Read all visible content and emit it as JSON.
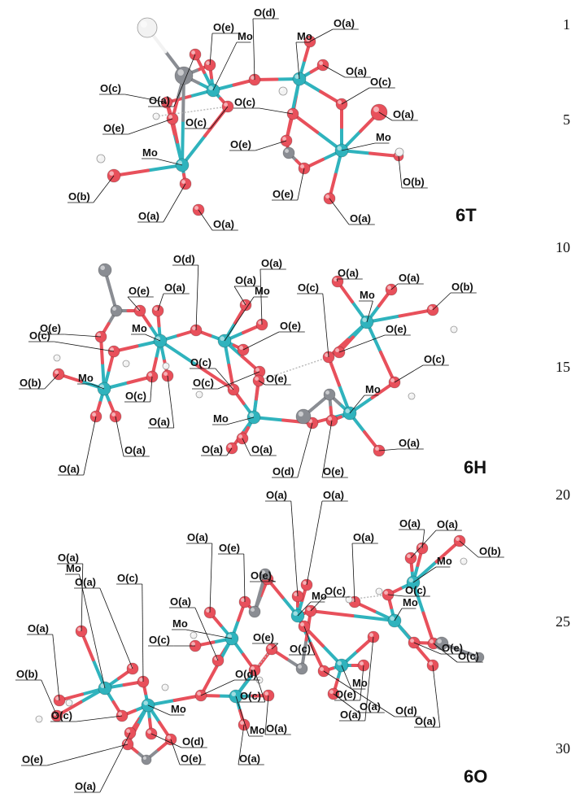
{
  "line_numbers": [
    "1",
    "5",
    "10",
    "15",
    "20",
    "25",
    "30"
  ],
  "structures": [
    {
      "title": "6T",
      "atoms": [
        {
          "el": "Mo",
          "label": "Mo"
        },
        {
          "el": "Mo",
          "label": "Mo"
        },
        {
          "el": "Mo",
          "label": "Mo"
        },
        {
          "el": "Mo",
          "label": "Mo"
        },
        {
          "el": "O",
          "label": "O(a)"
        },
        {
          "el": "O",
          "label": "O(a)"
        },
        {
          "el": "O",
          "label": "O(a)"
        },
        {
          "el": "O",
          "label": "O(a)"
        },
        {
          "el": "O",
          "label": "O(a)"
        },
        {
          "el": "O",
          "label": "O(a)"
        },
        {
          "el": "O",
          "label": "O(a)"
        },
        {
          "el": "O",
          "label": "O(b)"
        },
        {
          "el": "O",
          "label": "O(b)"
        },
        {
          "el": "O",
          "label": "O(c)"
        },
        {
          "el": "O",
          "label": "O(c)"
        },
        {
          "el": "O",
          "label": "O(c)"
        },
        {
          "el": "O",
          "label": "O(c)"
        },
        {
          "el": "O",
          "label": "O(d)"
        },
        {
          "el": "O",
          "label": "O(e)"
        },
        {
          "el": "O",
          "label": "O(e)"
        },
        {
          "el": "O",
          "label": "O(e)"
        },
        {
          "el": "O",
          "label": "O(e)"
        },
        {
          "el": "C",
          "label": ""
        },
        {
          "el": "C",
          "label": ""
        },
        {
          "el": "H",
          "label": ""
        },
        {
          "el": "H",
          "label": ""
        },
        {
          "el": "H",
          "label": ""
        },
        {
          "el": "H",
          "label": ""
        },
        {
          "el": "H",
          "label": ""
        }
      ]
    },
    {
      "title": "6H",
      "atoms": [
        {
          "el": "Mo",
          "label": "Mo"
        },
        {
          "el": "Mo",
          "label": "Mo"
        },
        {
          "el": "Mo",
          "label": "Mo"
        },
        {
          "el": "Mo",
          "label": "Mo"
        },
        {
          "el": "Mo",
          "label": "Mo"
        },
        {
          "el": "Mo",
          "label": "Mo"
        },
        {
          "el": "O",
          "label": "O(a)"
        },
        {
          "el": "O",
          "label": "O(a)"
        },
        {
          "el": "O",
          "label": "O(a)"
        },
        {
          "el": "O",
          "label": "O(a)"
        },
        {
          "el": "O",
          "label": "O(a)"
        },
        {
          "el": "O",
          "label": "O(a)"
        },
        {
          "el": "O",
          "label": "O(a)"
        },
        {
          "el": "O",
          "label": "O(a)"
        },
        {
          "el": "O",
          "label": "O(a)"
        },
        {
          "el": "O",
          "label": "O(a)"
        },
        {
          "el": "O",
          "label": "O(a)"
        },
        {
          "el": "O",
          "label": "O(b)"
        },
        {
          "el": "O",
          "label": "O(b)"
        },
        {
          "el": "O",
          "label": "O(c)"
        },
        {
          "el": "O",
          "label": "O(c)"
        },
        {
          "el": "O",
          "label": "O(c)"
        },
        {
          "el": "O",
          "label": "O(c)"
        },
        {
          "el": "O",
          "label": "O(c)"
        },
        {
          "el": "O",
          "label": "O(c)"
        },
        {
          "el": "O",
          "label": "O(d)"
        },
        {
          "el": "O",
          "label": "O(d)"
        },
        {
          "el": "O",
          "label": "O(e)"
        },
        {
          "el": "O",
          "label": "O(e)"
        },
        {
          "el": "O",
          "label": "O(e)"
        },
        {
          "el": "O",
          "label": "O(e)"
        },
        {
          "el": "O",
          "label": "O(e)"
        },
        {
          "el": "O",
          "label": "O(e)"
        },
        {
          "el": "C",
          "label": ""
        },
        {
          "el": "C",
          "label": ""
        },
        {
          "el": "C",
          "label": ""
        },
        {
          "el": "C",
          "label": ""
        },
        {
          "el": "H",
          "label": ""
        },
        {
          "el": "H",
          "label": ""
        },
        {
          "el": "H",
          "label": ""
        },
        {
          "el": "H",
          "label": ""
        },
        {
          "el": "H",
          "label": ""
        },
        {
          "el": "H",
          "label": ""
        }
      ]
    },
    {
      "title": "6O",
      "atoms": [
        {
          "el": "Mo",
          "label": "Mo"
        },
        {
          "el": "Mo",
          "label": "Mo"
        },
        {
          "el": "Mo",
          "label": "Mo"
        },
        {
          "el": "Mo",
          "label": "Mo"
        },
        {
          "el": "Mo",
          "label": "Mo"
        },
        {
          "el": "Mo",
          "label": "Mo"
        },
        {
          "el": "Mo",
          "label": "Mo"
        },
        {
          "el": "Mo",
          "label": "Mo"
        },
        {
          "el": "O",
          "label": "O(a)"
        },
        {
          "el": "O",
          "label": "O(a)"
        },
        {
          "el": "O",
          "label": "O(a)"
        },
        {
          "el": "O",
          "label": "O(a)"
        },
        {
          "el": "O",
          "label": "O(a)"
        },
        {
          "el": "O",
          "label": "O(a)"
        },
        {
          "el": "O",
          "label": "O(a)"
        },
        {
          "el": "O",
          "label": "O(a)"
        },
        {
          "el": "O",
          "label": "O(a)"
        },
        {
          "el": "O",
          "label": "O(a)"
        },
        {
          "el": "O",
          "label": "O(a)"
        },
        {
          "el": "O",
          "label": "O(a)"
        },
        {
          "el": "O",
          "label": "O(a)"
        },
        {
          "el": "O",
          "label": "O(a)"
        },
        {
          "el": "O",
          "label": "O(a)"
        },
        {
          "el": "O",
          "label": "O(a)"
        },
        {
          "el": "O",
          "label": "O(b)"
        },
        {
          "el": "O",
          "label": "O(b)"
        },
        {
          "el": "O",
          "label": "O(c)"
        },
        {
          "el": "O",
          "label": "O(c)"
        },
        {
          "el": "O",
          "label": "O(c)"
        },
        {
          "el": "O",
          "label": "O(c)"
        },
        {
          "el": "O",
          "label": "O(c)"
        },
        {
          "el": "O",
          "label": "O(c)"
        },
        {
          "el": "O",
          "label": "O(c)"
        },
        {
          "el": "O",
          "label": "O(c)"
        },
        {
          "el": "O",
          "label": "O(d)"
        },
        {
          "el": "O",
          "label": "O(d)"
        },
        {
          "el": "O",
          "label": "O(d)"
        },
        {
          "el": "O",
          "label": "O(e)"
        },
        {
          "el": "O",
          "label": "O(e)"
        },
        {
          "el": "O",
          "label": "O(e)"
        },
        {
          "el": "O",
          "label": "O(e)"
        },
        {
          "el": "O",
          "label": "O(e)"
        },
        {
          "el": "O",
          "label": "O(e)"
        },
        {
          "el": "O",
          "label": "O(e)"
        },
        {
          "el": "C",
          "label": ""
        },
        {
          "el": "C",
          "label": ""
        },
        {
          "el": "C",
          "label": ""
        },
        {
          "el": "C",
          "label": ""
        },
        {
          "el": "C",
          "label": ""
        },
        {
          "el": "C",
          "label": ""
        },
        {
          "el": "H",
          "label": ""
        },
        {
          "el": "H",
          "label": ""
        },
        {
          "el": "H",
          "label": ""
        },
        {
          "el": "H",
          "label": ""
        },
        {
          "el": "H",
          "label": ""
        },
        {
          "el": "H",
          "label": ""
        },
        {
          "el": "H",
          "label": ""
        },
        {
          "el": "H",
          "label": ""
        }
      ]
    }
  ],
  "colors": {
    "Mo": "#2fb3bd",
    "O": "#e8505b",
    "C": "#8a8d93",
    "H": "#f2f2f2",
    "bond_Mo_O_a": "#2fb3bd",
    "bond_Mo_O_b": "#e8505b",
    "leader": "#111111"
  }
}
